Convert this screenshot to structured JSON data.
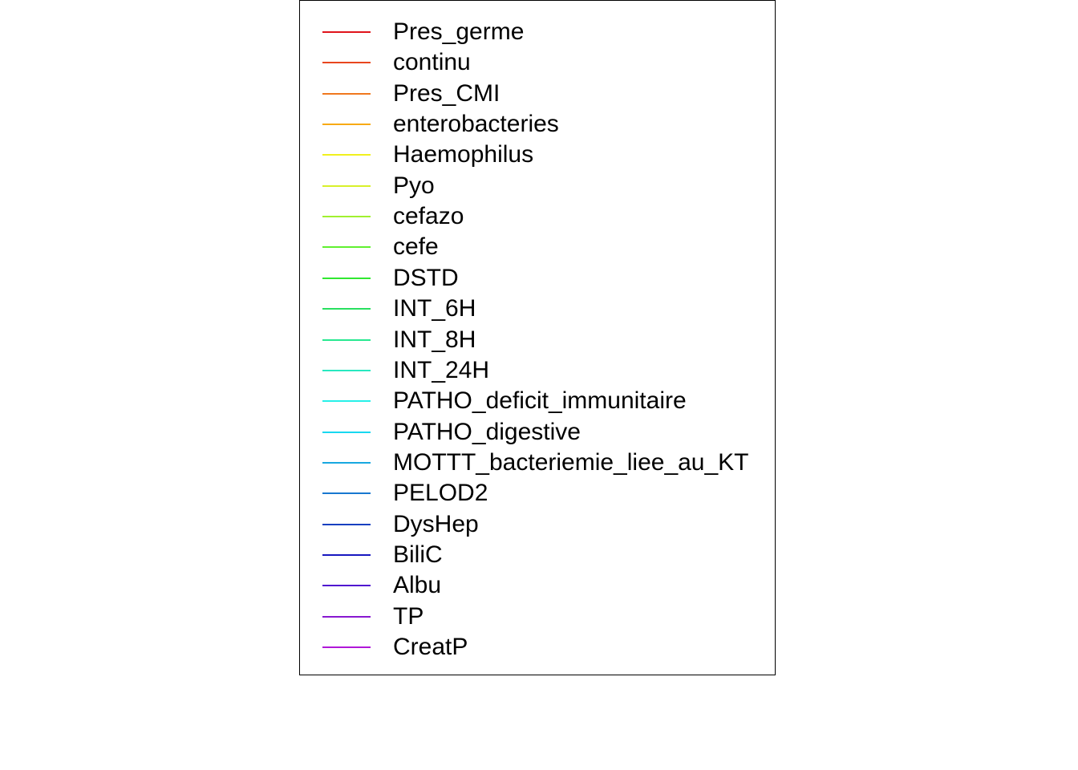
{
  "chart_data": {
    "type": "line",
    "legend": {
      "placement": "top-center",
      "entries": [
        {
          "name": "Pres_germe",
          "color": "#E0141B"
        },
        {
          "name": "continu",
          "color": "#E8461E"
        },
        {
          "name": "Pres_CMI",
          "color": "#F0781E"
        },
        {
          "name": "enterobacteries",
          "color": "#F8AA14"
        },
        {
          "name": "Haemophilus",
          "color": "#F0F01E"
        },
        {
          "name": "Pyo",
          "color": "#D8F02A"
        },
        {
          "name": "cefazo",
          "color": "#A0F030"
        },
        {
          "name": "cefe",
          "color": "#60F030"
        },
        {
          "name": "DSTD",
          "color": "#30E830"
        },
        {
          "name": "INT_6H",
          "color": "#28E060"
        },
        {
          "name": "INT_8H",
          "color": "#28E890"
        },
        {
          "name": "INT_24H",
          "color": "#28E8C0"
        },
        {
          "name": "PATHO_deficit_immunitaire",
          "color": "#28F0E8"
        },
        {
          "name": "PATHO_digestive",
          "color": "#18D8F0"
        },
        {
          "name": "MOTTT_bacteriemie_liee_au_KT",
          "color": "#18A8E0"
        },
        {
          "name": "PELOD2",
          "color": "#1878D0"
        },
        {
          "name": "DysHep",
          "color": "#1840C0"
        },
        {
          "name": "BiliC",
          "color": "#1818C0"
        },
        {
          "name": "Albu",
          "color": "#5018D0"
        },
        {
          "name": "TP",
          "color": "#8818D0"
        },
        {
          "name": "CreatP",
          "color": "#B018D8"
        }
      ]
    }
  }
}
